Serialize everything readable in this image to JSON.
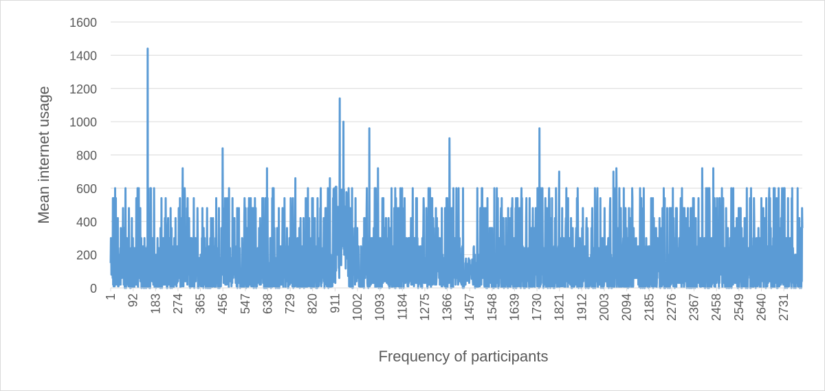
{
  "chart_data": {
    "type": "line",
    "title": "",
    "xlabel": "Frequency of participants",
    "ylabel": "Mean internet usage",
    "ylim": [
      0,
      1600
    ],
    "xlim": [
      1,
      2806
    ],
    "y_ticks": [
      0,
      200,
      400,
      600,
      800,
      1000,
      1200,
      1400,
      1600
    ],
    "x_ticks": [
      1,
      92,
      183,
      274,
      365,
      456,
      547,
      638,
      729,
      820,
      911,
      1002,
      1093,
      1184,
      1275,
      1366,
      1457,
      1548,
      1639,
      1730,
      1821,
      1912,
      2003,
      2094,
      2185,
      2276,
      2367,
      2458,
      2549,
      2640,
      2731
    ],
    "grid": "horizontal",
    "legend": "none",
    "series_color": "#5b9bd5",
    "series": [
      {
        "values_note": "",
        "peaks": [
          {
            "x": 151,
            "y": 1440
          },
          {
            "x": 930,
            "y": 1140
          },
          {
            "x": 945,
            "y": 1000
          },
          {
            "x": 1050,
            "y": 960
          },
          {
            "x": 1740,
            "y": 960
          },
          {
            "x": 1375,
            "y": 900
          },
          {
            "x": 455,
            "y": 840
          },
          {
            "x": 293,
            "y": 720
          },
          {
            "x": 635,
            "y": 720
          },
          {
            "x": 1085,
            "y": 720
          },
          {
            "x": 2052,
            "y": 720
          },
          {
            "x": 2400,
            "y": 720
          },
          {
            "x": 2445,
            "y": 720
          },
          {
            "x": 2040,
            "y": 700
          },
          {
            "x": 1820,
            "y": 700
          },
          {
            "x": 750,
            "y": 660
          },
          {
            "x": 890,
            "y": 660
          }
        ],
        "values": []
      }
    ]
  }
}
